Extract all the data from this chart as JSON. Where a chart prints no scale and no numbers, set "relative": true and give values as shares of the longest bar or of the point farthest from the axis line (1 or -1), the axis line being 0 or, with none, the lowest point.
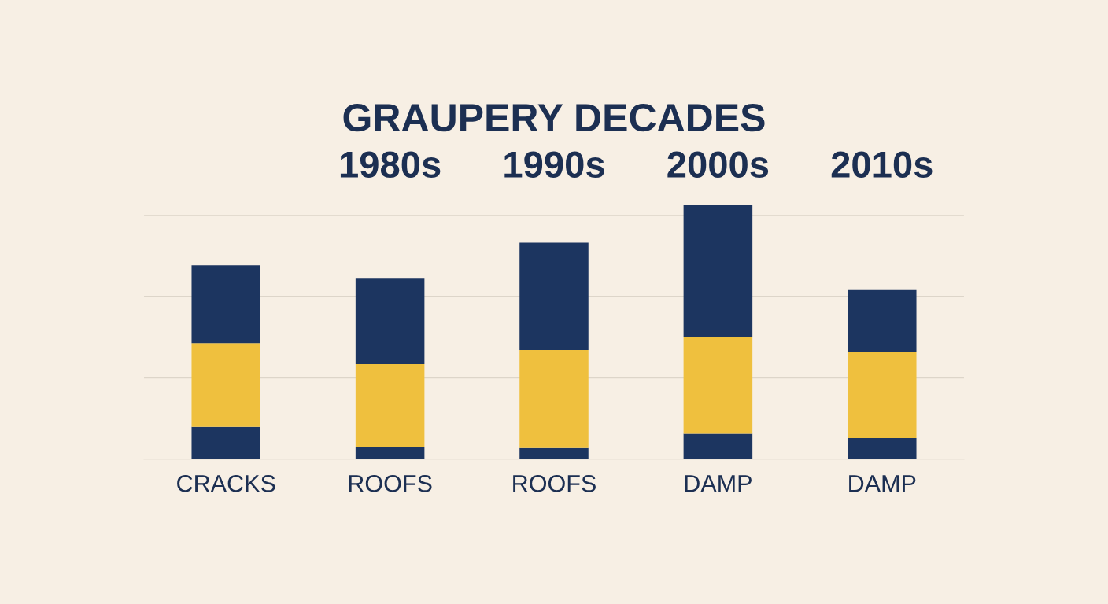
{
  "chart_data": {
    "type": "bar",
    "title": "GRAUPERY DECADES",
    "categories": [
      "CRACKS",
      "ROOFS",
      "ROOFS",
      "DAMP",
      "DAMP"
    ],
    "relative": true,
    "stacked": true,
    "grid": "y",
    "series": [
      {
        "color": "#1c3560",
        "values": [
          0.127,
          0.047,
          0.043,
          0.1,
          0.083
        ]
      },
      {
        "color": "#efc03e",
        "values": [
          0.33,
          0.327,
          0.387,
          0.38,
          0.34
        ]
      },
      {
        "color": "#1c3560",
        "values": [
          0.307,
          0.337,
          0.423,
          0.52,
          0.243
        ]
      }
    ],
    "annotations": [
      "1980s",
      "1990s",
      "2000s",
      "2010s"
    ]
  }
}
